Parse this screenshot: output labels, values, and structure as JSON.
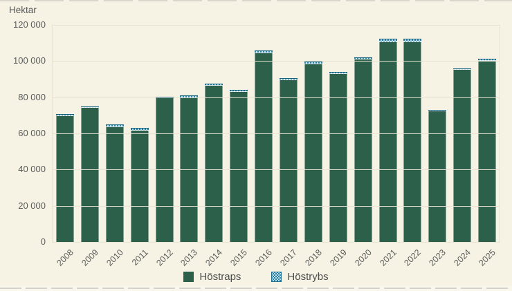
{
  "chart_data": {
    "type": "bar",
    "stacked": true,
    "ylabel": "Hektar",
    "xlabel": "",
    "ylim": [
      0,
      120000
    ],
    "ytick_step": 20000,
    "yticks_top_to_bottom": [
      "120 000",
      "100 000",
      "80 000",
      "60 000",
      "40 000",
      "20 000",
      "0"
    ],
    "grid": "horizontal",
    "legend_position": "bottom-center",
    "categories": [
      "2008",
      "2009",
      "2010",
      "2011",
      "2012",
      "2013",
      "2014",
      "2015",
      "2016",
      "2017",
      "2018",
      "2019",
      "2020",
      "2021",
      "2022",
      "2023",
      "2024",
      "2025"
    ],
    "series": [
      {
        "name": "Höstraps",
        "color": "#2c604b",
        "pattern": "solid",
        "values": [
          69400,
          74000,
          63300,
          61600,
          79500,
          79500,
          86300,
          82900,
          104500,
          89500,
          98100,
          92900,
          100800,
          110600,
          110300,
          72400,
          95300,
          100000
        ]
      },
      {
        "name": "Höstrybs",
        "color": "#2a7fa0",
        "pattern": "checker-dots",
        "values": [
          1000,
          600,
          1500,
          1500,
          800,
          1500,
          1300,
          1300,
          1500,
          1200,
          1500,
          1200,
          1300,
          2000,
          1900,
          600,
          800,
          1000
        ]
      }
    ]
  },
  "colors": {
    "background": "#f6f3e4",
    "gridline": "#e7e3d3",
    "text": "#5b5b5b",
    "hostraps_green": "#2c604b",
    "hostrybs_teal": "#2a7fa0",
    "hostrybs_dot": "#d6f0f8"
  },
  "legend": {
    "items": [
      {
        "label": "Höstraps",
        "swatch": "green-solid-swatch"
      },
      {
        "label": "Höstrybs",
        "swatch": "teal-dotted-swatch"
      }
    ]
  }
}
